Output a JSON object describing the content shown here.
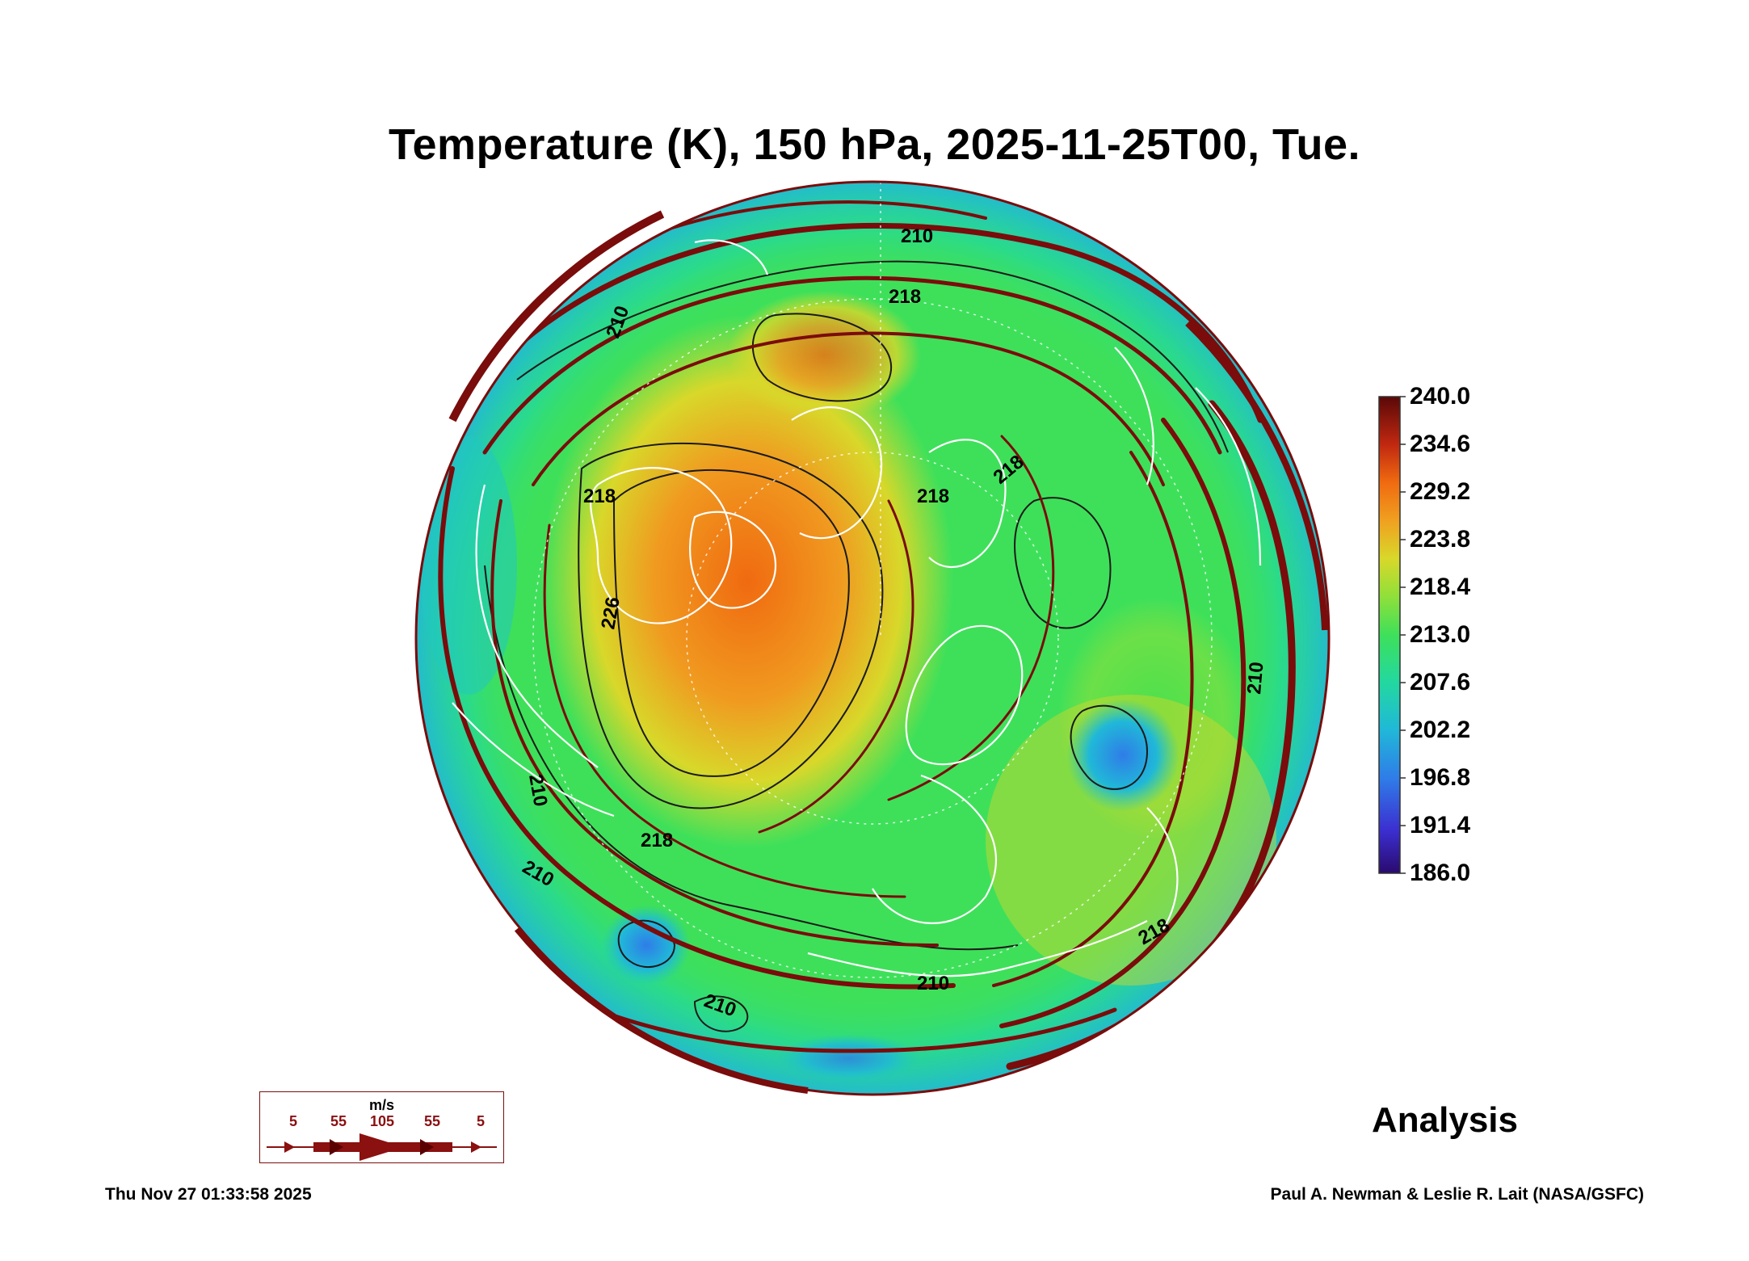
{
  "title": "Temperature (K), 150 hPa, 2025-11-25T00, Tue.",
  "colorbar": {
    "ticks": [
      "240.0",
      "234.6",
      "229.2",
      "223.8",
      "218.4",
      "213.0",
      "207.6",
      "202.2",
      "196.8",
      "191.4",
      "186.0"
    ],
    "min": 186.0,
    "max": 240.0,
    "colors": [
      "#2a0a6e",
      "#3b2fd0",
      "#2f7de8",
      "#20b8d8",
      "#22d8a0",
      "#3ee05a",
      "#8fe03a",
      "#d8d82a",
      "#f0a020",
      "#f06a10",
      "#d83010",
      "#8a0a0a",
      "#5a0808"
    ]
  },
  "contour_labels": [
    "210",
    "218",
    "218",
    "218",
    "226",
    "218",
    "218",
    "210",
    "210",
    "210",
    "210",
    "218",
    "210",
    "210"
  ],
  "wind_legend": {
    "unit": "m/s",
    "values": [
      "5",
      "55",
      "105",
      "55",
      "5"
    ],
    "color": "#8b1010"
  },
  "analysis_label": "Analysis",
  "timestamp": "Thu Nov 27 01:33:58 2025",
  "credit": "Paul A. Newman & Leslie R. Lait (NASA/GSFC)"
}
